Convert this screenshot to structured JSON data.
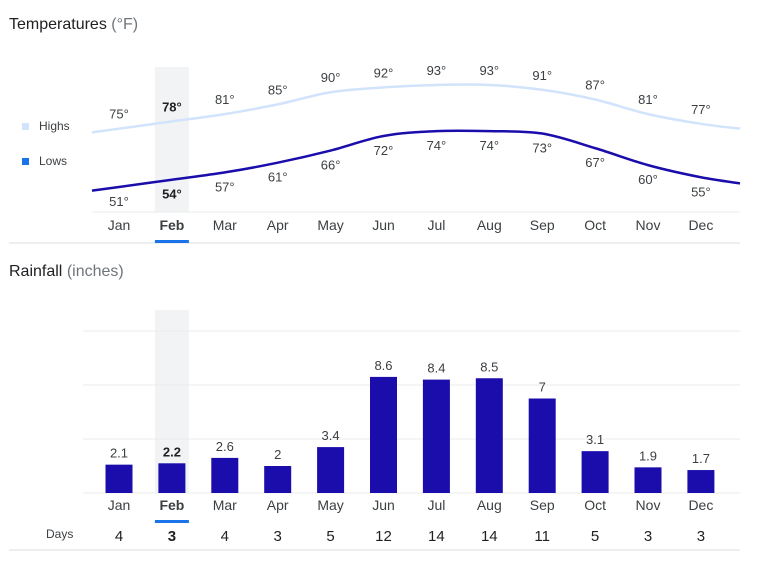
{
  "temperatures": {
    "title": "Temperatures",
    "unit": "(°F)",
    "legend": {
      "highs": "Highs",
      "lows": "Lows"
    },
    "colors": {
      "highs": "#d2e3fc",
      "lows": "#1a0dab"
    }
  },
  "rainfall": {
    "title": "Rainfall",
    "unit": "(inches)",
    "bar_color": "#1a0dab",
    "days_label": "Days"
  },
  "selected_month": "Feb",
  "chart_data": [
    {
      "type": "line",
      "title": "Temperatures (°F)",
      "categories": [
        "Jan",
        "Feb",
        "Mar",
        "Apr",
        "May",
        "Jun",
        "Jul",
        "Aug",
        "Sep",
        "Oct",
        "Nov",
        "Dec"
      ],
      "series": [
        {
          "name": "Highs",
          "values": [
            75,
            78,
            81,
            85,
            90,
            92,
            93,
            93,
            91,
            87,
            81,
            77
          ],
          "labels": [
            "75°",
            "78°",
            "81°",
            "85°",
            "90°",
            "92°",
            "93°",
            "93°",
            "91°",
            "87°",
            "81°",
            "77°"
          ]
        },
        {
          "name": "Lows",
          "values": [
            51,
            54,
            57,
            61,
            66,
            72,
            74,
            74,
            73,
            67,
            60,
            55
          ],
          "labels": [
            "51°",
            "54°",
            "57°",
            "61°",
            "66°",
            "72°",
            "74°",
            "74°",
            "73°",
            "67°",
            "60°",
            "55°"
          ]
        }
      ]
    },
    {
      "type": "bar",
      "title": "Rainfall (inches)",
      "categories": [
        "Jan",
        "Feb",
        "Mar",
        "Apr",
        "May",
        "Jun",
        "Jul",
        "Aug",
        "Sep",
        "Oct",
        "Nov",
        "Dec"
      ],
      "values": [
        2.1,
        2.2,
        2.6,
        2,
        3.4,
        8.6,
        8.4,
        8.5,
        7,
        3.1,
        1.9,
        1.7
      ],
      "labels": [
        "2.1",
        "2.2",
        "2.6",
        "2",
        "3.4",
        "8.6",
        "8.4",
        "8.5",
        "7",
        "3.1",
        "1.9",
        "1.7"
      ],
      "days": [
        4,
        3,
        4,
        3,
        5,
        12,
        14,
        14,
        11,
        5,
        3,
        3
      ],
      "grid": true
    }
  ]
}
